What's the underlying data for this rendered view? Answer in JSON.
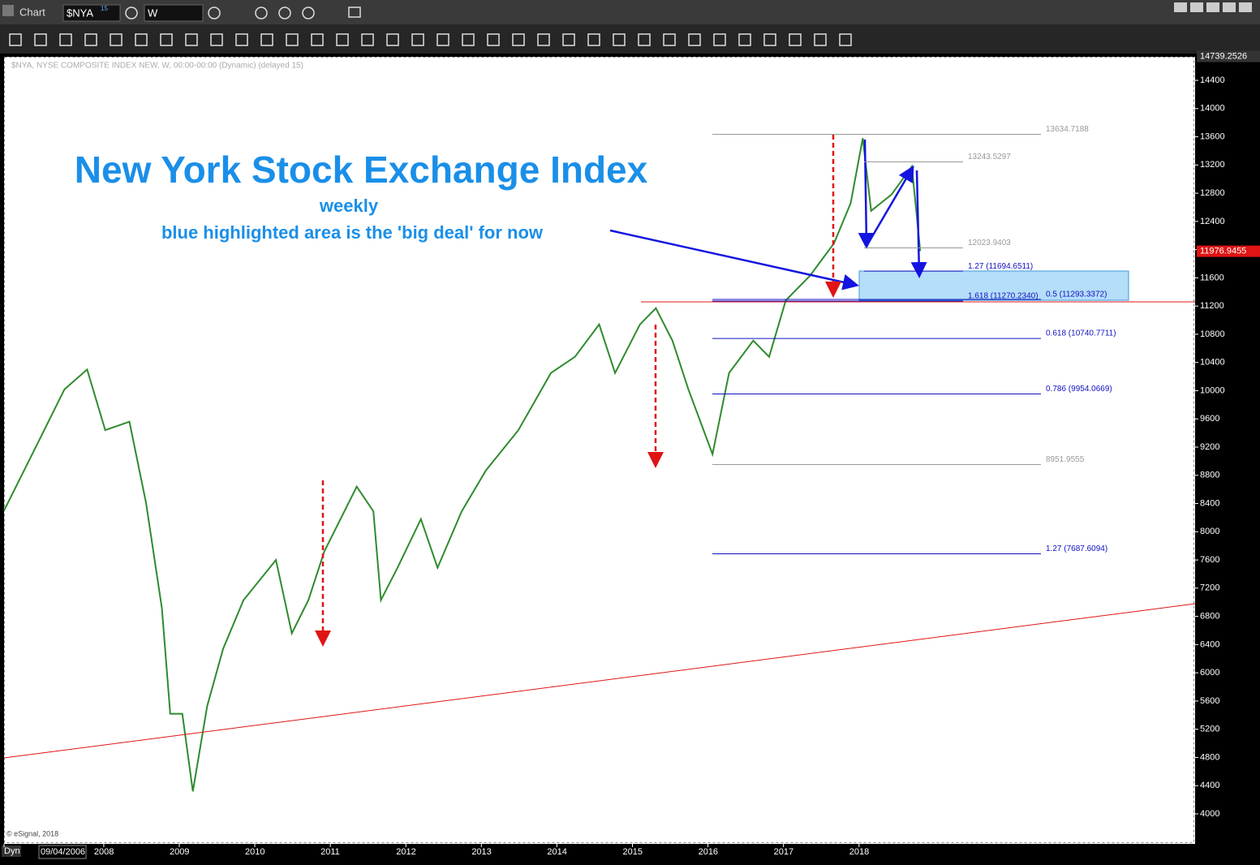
{
  "window": {
    "title": "Chart",
    "symbol": "$NYA",
    "delay_badge": "15",
    "interval": "W",
    "mode": "Dyn",
    "watermark": "© eSignal, 2018"
  },
  "chart_data": {
    "type": "line",
    "header": "$NYA, NYSE COMPOSITE INDEX NEW, W, 00:00-00:00 (Dynamic) (delayed 15)",
    "title": "New York Stock Exchange Index",
    "subtitle": "weekly",
    "annotation": "blue highlighted area is the 'big deal' for now",
    "xlim": [
      2006.68,
      2022.45
    ],
    "ylim": [
      3574,
      14734
    ],
    "xticks": [
      {
        "value": 2006.68,
        "label": "09/04/2006"
      },
      2008,
      2009,
      2010,
      2011,
      2012,
      2013,
      2014,
      2015,
      2016,
      2017,
      2018
    ],
    "yticks": [
      4000,
      4400,
      4800,
      5200,
      5600,
      6000,
      6400,
      6800,
      7200,
      7600,
      8000,
      8400,
      8800,
      9200,
      9600,
      10000,
      10400,
      10800,
      11200,
      11600,
      12000,
      12400,
      12800,
      13200,
      13600,
      14000,
      14400
    ],
    "high_label": 14739.2526,
    "last_price": 11976.9455,
    "series": [
      {
        "color": "#2e8b2e",
        "x": [
          2006.68,
          2007.16,
          2007.48,
          2007.78,
          2008.02,
          2008.34,
          2008.56,
          2008.77,
          2008.88,
          2009.04,
          2009.18,
          2009.37,
          2009.58,
          2009.85,
          2010.28,
          2010.49,
          2010.71,
          2010.92,
          2011.35,
          2011.57,
          2011.67,
          2011.89,
          2012.2,
          2012.42,
          2012.74,
          2013.06,
          2013.49,
          2013.92,
          2014.24,
          2014.56,
          2014.77,
          2015.1,
          2015.31,
          2015.53,
          2015.74,
          2016.06,
          2016.28,
          2016.6,
          2016.81,
          2017.03,
          2017.35,
          2017.67,
          2017.89,
          2018.05,
          2018.16,
          2018.43,
          2018.7,
          2018.81
        ],
        "values": [
          8300,
          9330,
          10020,
          10300,
          9440,
          9560,
          8410,
          6910,
          5420,
          5420,
          4320,
          5530,
          6340,
          7030,
          7600,
          6560,
          7030,
          7720,
          8640,
          8290,
          7030,
          7490,
          8180,
          7490,
          8290,
          8870,
          9440,
          10250,
          10480,
          10940,
          10250,
          10940,
          11170,
          10710,
          10020,
          9100,
          10250,
          10710,
          10480,
          11280,
          11630,
          12090,
          12660,
          13580,
          12550,
          12780,
          13180,
          11980
        ]
      }
    ],
    "levels": [
      {
        "value": 13634.7188,
        "label": "13634.7188",
        "color": "#999999"
      },
      {
        "value": 13243.5297,
        "label": "13243.5297",
        "color": "#999999"
      },
      {
        "value": 12023.9403,
        "label": "12023.9403",
        "color": "#999999"
      },
      {
        "value": 11694.6511,
        "label": "1.27 (11694.6511)",
        "color": "#1010c0"
      },
      {
        "value": 11270.234,
        "label": "1.618 (11270.2340)",
        "color": "#1010c0"
      },
      {
        "value": 11293.3372,
        "label": "0.5 (11293.3372)",
        "color": "#1010c0"
      },
      {
        "value": 10740.7711,
        "label": "0.618 (10740.7711)",
        "color": "#1010c0"
      },
      {
        "value": 9954.0669,
        "label": "0.786 (9954.0669)",
        "color": "#1010c0"
      },
      {
        "value": 8951.9555,
        "label": "8951.9555",
        "color": "#999999"
      },
      {
        "value": 7687.6094,
        "label": "1.27 (7687.6094)",
        "color": "#1010c0"
      }
    ]
  }
}
